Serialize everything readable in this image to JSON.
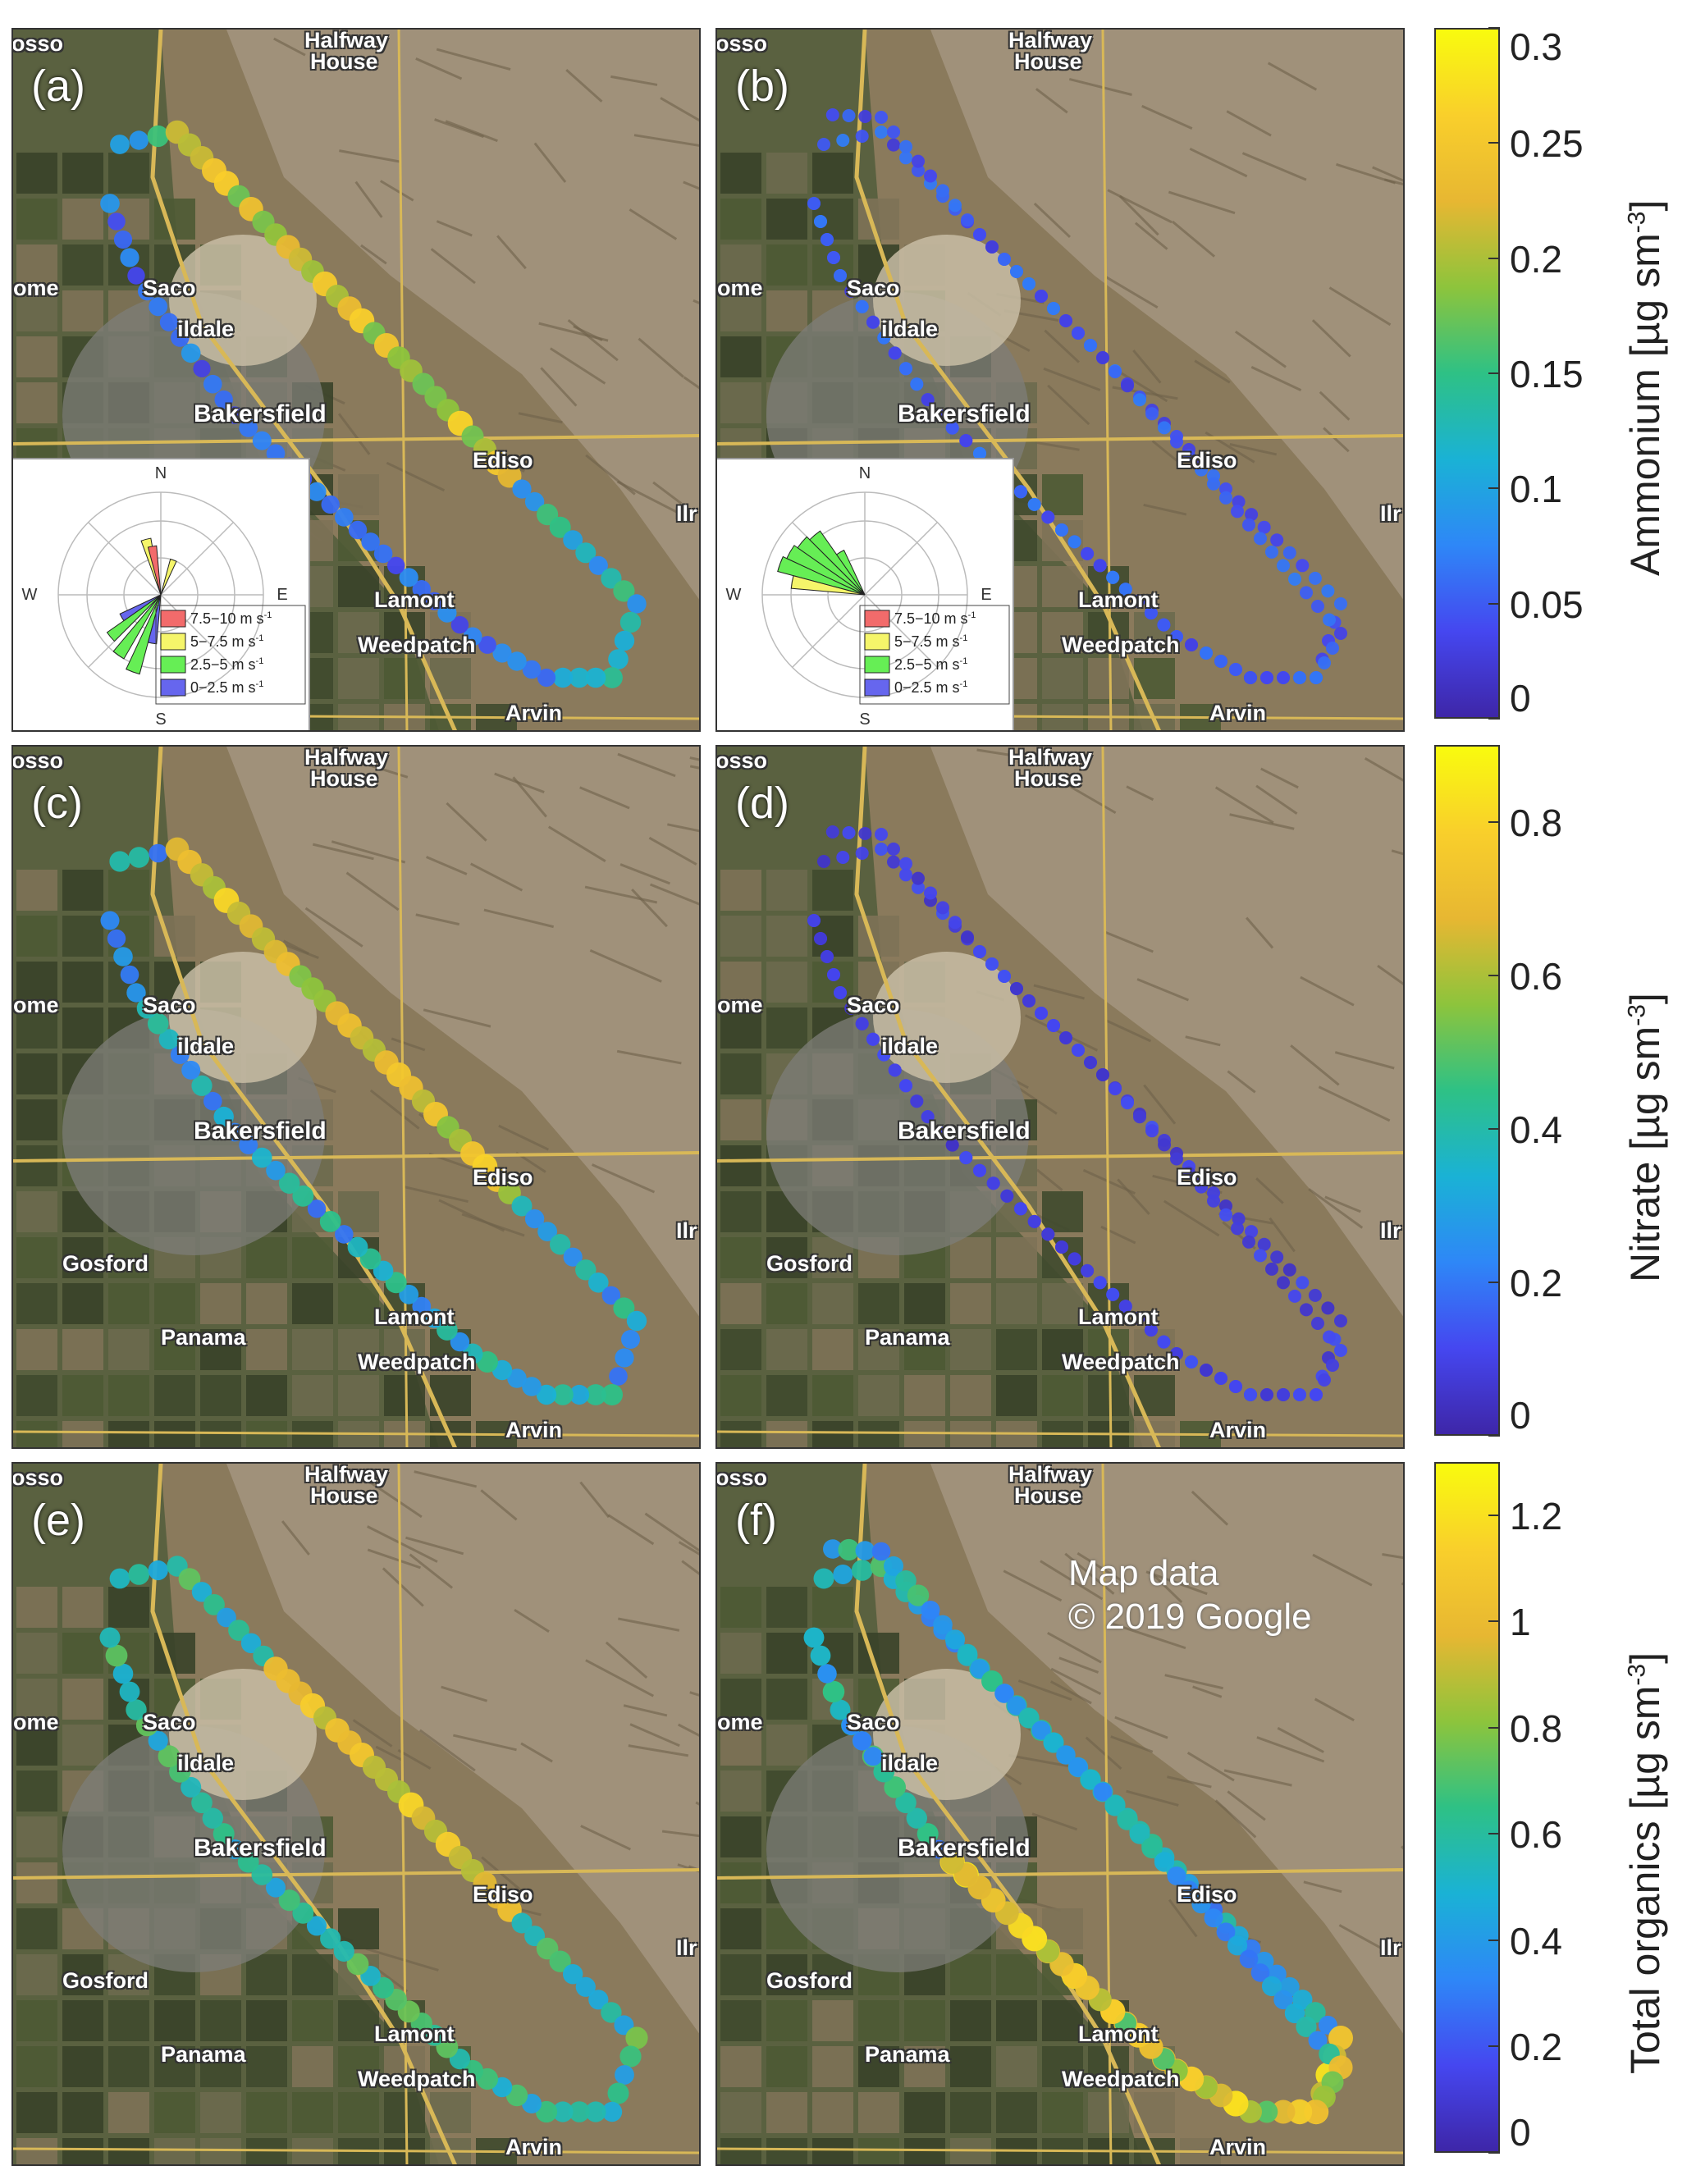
{
  "panels": [
    {
      "id": "a",
      "label": "(a)",
      "species": "ammonium",
      "windrose": true
    },
    {
      "id": "b",
      "label": "(b)",
      "species": "ammonium",
      "windrose": true
    },
    {
      "id": "c",
      "label": "(c)",
      "species": "nitrate",
      "windrose": false
    },
    {
      "id": "d",
      "label": "(d)",
      "species": "nitrate",
      "windrose": false
    },
    {
      "id": "e",
      "label": "(e)",
      "species": "organics",
      "windrose": false
    },
    {
      "id": "f",
      "label": "(f)",
      "species": "organics",
      "windrose": false
    }
  ],
  "map_labels": {
    "halfway": "Halfway",
    "house": "House",
    "saco": "Saco",
    "oildale": "ildale",
    "bakersfield": "Bakersfield",
    "edison": "Ediso",
    "lamont": "Lamont",
    "weedpatch": "Weedpatch",
    "arvin": "Arvin",
    "gosford": "Gosford",
    "panama": "Panama",
    "ome": "ome",
    "osso": "osso",
    "ilr": "Ilr"
  },
  "credit": {
    "line1": "Map data",
    "line2": "© 2019 Google"
  },
  "windrose": {
    "compass": {
      "n": "N",
      "s": "S",
      "e": "E",
      "w": "W"
    },
    "legend": [
      {
        "label": "7.5−10 m s",
        "sup": "-1",
        "color": "#f26b6b"
      },
      {
        "label": "5−7.5 m s",
        "sup": "-1",
        "color": "#f5f56a"
      },
      {
        "label": "2.5−5 m s",
        "sup": "-1",
        "color": "#66ee55"
      },
      {
        "label": "0−2.5 m s",
        "sup": "-1",
        "color": "#6666ee"
      }
    ]
  },
  "colorbars": [
    {
      "label": "Ammonium [µg sm",
      "sup": "-3",
      "close": "]",
      "ticks": [
        "0",
        "0.05",
        "0.1",
        "0.15",
        "0.2",
        "0.25",
        "0.3"
      ],
      "range": [
        0,
        0.3
      ]
    },
    {
      "label": "Nitrate [µg sm",
      "sup": "-3",
      "close": "]",
      "ticks": [
        "0",
        "0.2",
        "0.4",
        "0.6",
        "0.8"
      ],
      "range": [
        0,
        0.9
      ]
    },
    {
      "label": "Total organics [µg sm",
      "sup": "-3",
      "close": "]",
      "ticks": [
        "0",
        "0.2",
        "0.4",
        "0.6",
        "0.8",
        "1",
        "1.2"
      ],
      "range": [
        0,
        1.3
      ]
    }
  ],
  "colors": {
    "parula_low": "#3e26a8",
    "parula_high": "#f9fb0e"
  }
}
